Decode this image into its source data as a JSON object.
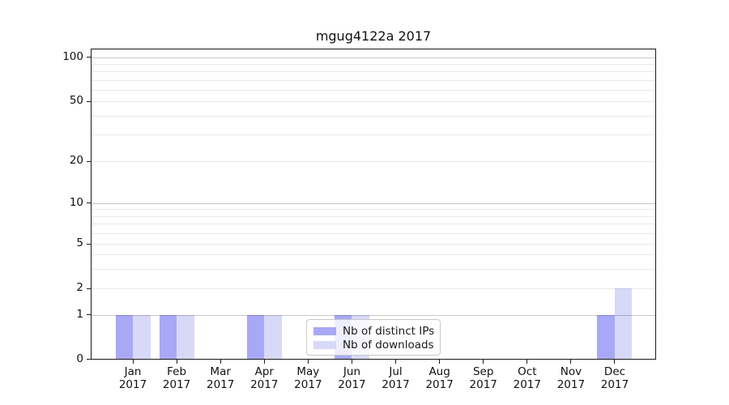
{
  "title": "mgug4122a 2017",
  "legend": {
    "items": [
      {
        "label": "Nb of distinct IPs",
        "color": "#a8a8f6"
      },
      {
        "label": "Nb of downloads",
        "color": "#d8d8f8"
      }
    ]
  },
  "chart_data": {
    "type": "bar",
    "title": "mgug4122a 2017",
    "categories": [
      "Jan 2017",
      "Feb 2017",
      "Mar 2017",
      "Apr 2017",
      "May 2017",
      "Jun 2017",
      "Jul 2017",
      "Aug 2017",
      "Sep 2017",
      "Oct 2017",
      "Nov 2017",
      "Dec 2017"
    ],
    "x_tick_line1": [
      "Jan",
      "Feb",
      "Mar",
      "Apr",
      "May",
      "Jun",
      "Jul",
      "Aug",
      "Sep",
      "Oct",
      "Nov",
      "Dec"
    ],
    "x_tick_line2": [
      "2017",
      "2017",
      "2017",
      "2017",
      "2017",
      "2017",
      "2017",
      "2017",
      "2017",
      "2017",
      "2017",
      "2017"
    ],
    "series": [
      {
        "name": "Nb of distinct IPs",
        "key": "distinct-ips",
        "color": "#a8a8f6",
        "values": [
          1,
          1,
          0,
          1,
          0,
          1,
          0,
          0,
          0,
          0,
          0,
          1
        ]
      },
      {
        "name": "Nb of downloads",
        "key": "downloads",
        "color": "#d8d8f8",
        "values": [
          1,
          1,
          0,
          1,
          0,
          1,
          0,
          0,
          0,
          0,
          0,
          2
        ]
      }
    ],
    "y_tick_labels": [
      0,
      1,
      2,
      5,
      10,
      20,
      50,
      100
    ],
    "y_decade_gridlines": [
      1,
      10,
      100
    ],
    "y_light_gridlines": [
      2,
      3,
      4,
      5,
      6,
      7,
      8,
      9,
      20,
      30,
      40,
      50,
      60,
      70,
      80,
      90
    ],
    "ylim": [
      0,
      110
    ],
    "yscale": "symlog",
    "grid": "both",
    "legend_position": "lower center inside axes"
  }
}
